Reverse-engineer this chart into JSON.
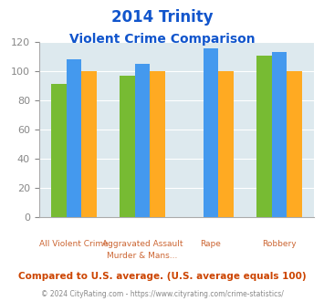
{
  "title_line1": "2014 Trinity",
  "title_line2": "Violent Crime Comparison",
  "category_labels_line1": [
    "",
    "Aggravated Assault",
    "",
    ""
  ],
  "category_labels_line2": [
    "All Violent Crime",
    "Murder & Mans...",
    "Rape",
    "Robbery"
  ],
  "series": {
    "Trinity": [
      91,
      97,
      0,
      111
    ],
    "Texas": [
      108,
      105,
      116,
      113
    ],
    "National": [
      100,
      100,
      100,
      100
    ]
  },
  "colors": {
    "Trinity": "#77bb33",
    "Texas": "#4499ee",
    "National": "#ffaa22"
  },
  "ylim": [
    0,
    120
  ],
  "yticks": [
    0,
    20,
    40,
    60,
    80,
    100,
    120
  ],
  "background_color": "#dde9ee",
  "title_color": "#1155cc",
  "axis_label_color": "#cc6633",
  "legend_label_color": "#555555",
  "footer_text": "Compared to U.S. average. (U.S. average equals 100)",
  "copyright_text": "© 2024 CityRating.com - https://www.cityrating.com/crime-statistics/",
  "footer_color": "#cc4400",
  "copyright_color": "#888888"
}
